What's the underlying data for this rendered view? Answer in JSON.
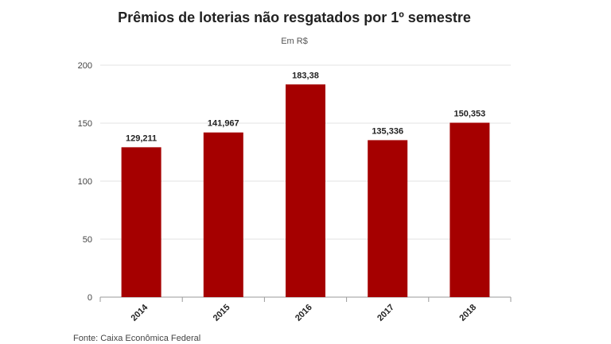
{
  "chart_data": {
    "type": "bar",
    "title": "Prêmios de loterias não resgatados por 1º semestre",
    "subtitle": "Em R$",
    "categories": [
      "2014",
      "2015",
      "2016",
      "2017",
      "2018"
    ],
    "values": [
      129.211,
      141.967,
      183.38,
      135.336,
      150.353
    ],
    "value_labels": [
      "129,211",
      "141,967",
      "183,38",
      "135,336",
      "150,353"
    ],
    "y_ticks": [
      0,
      50,
      100,
      150,
      200
    ],
    "y_tick_labels": [
      "0",
      "50",
      "100",
      "150",
      "200"
    ],
    "ylim": [
      0,
      200
    ],
    "xlabel": "",
    "ylabel": "",
    "grid": true,
    "bar_color": "#a50000",
    "source": "Fonte: Caixa Econômica Federal"
  }
}
